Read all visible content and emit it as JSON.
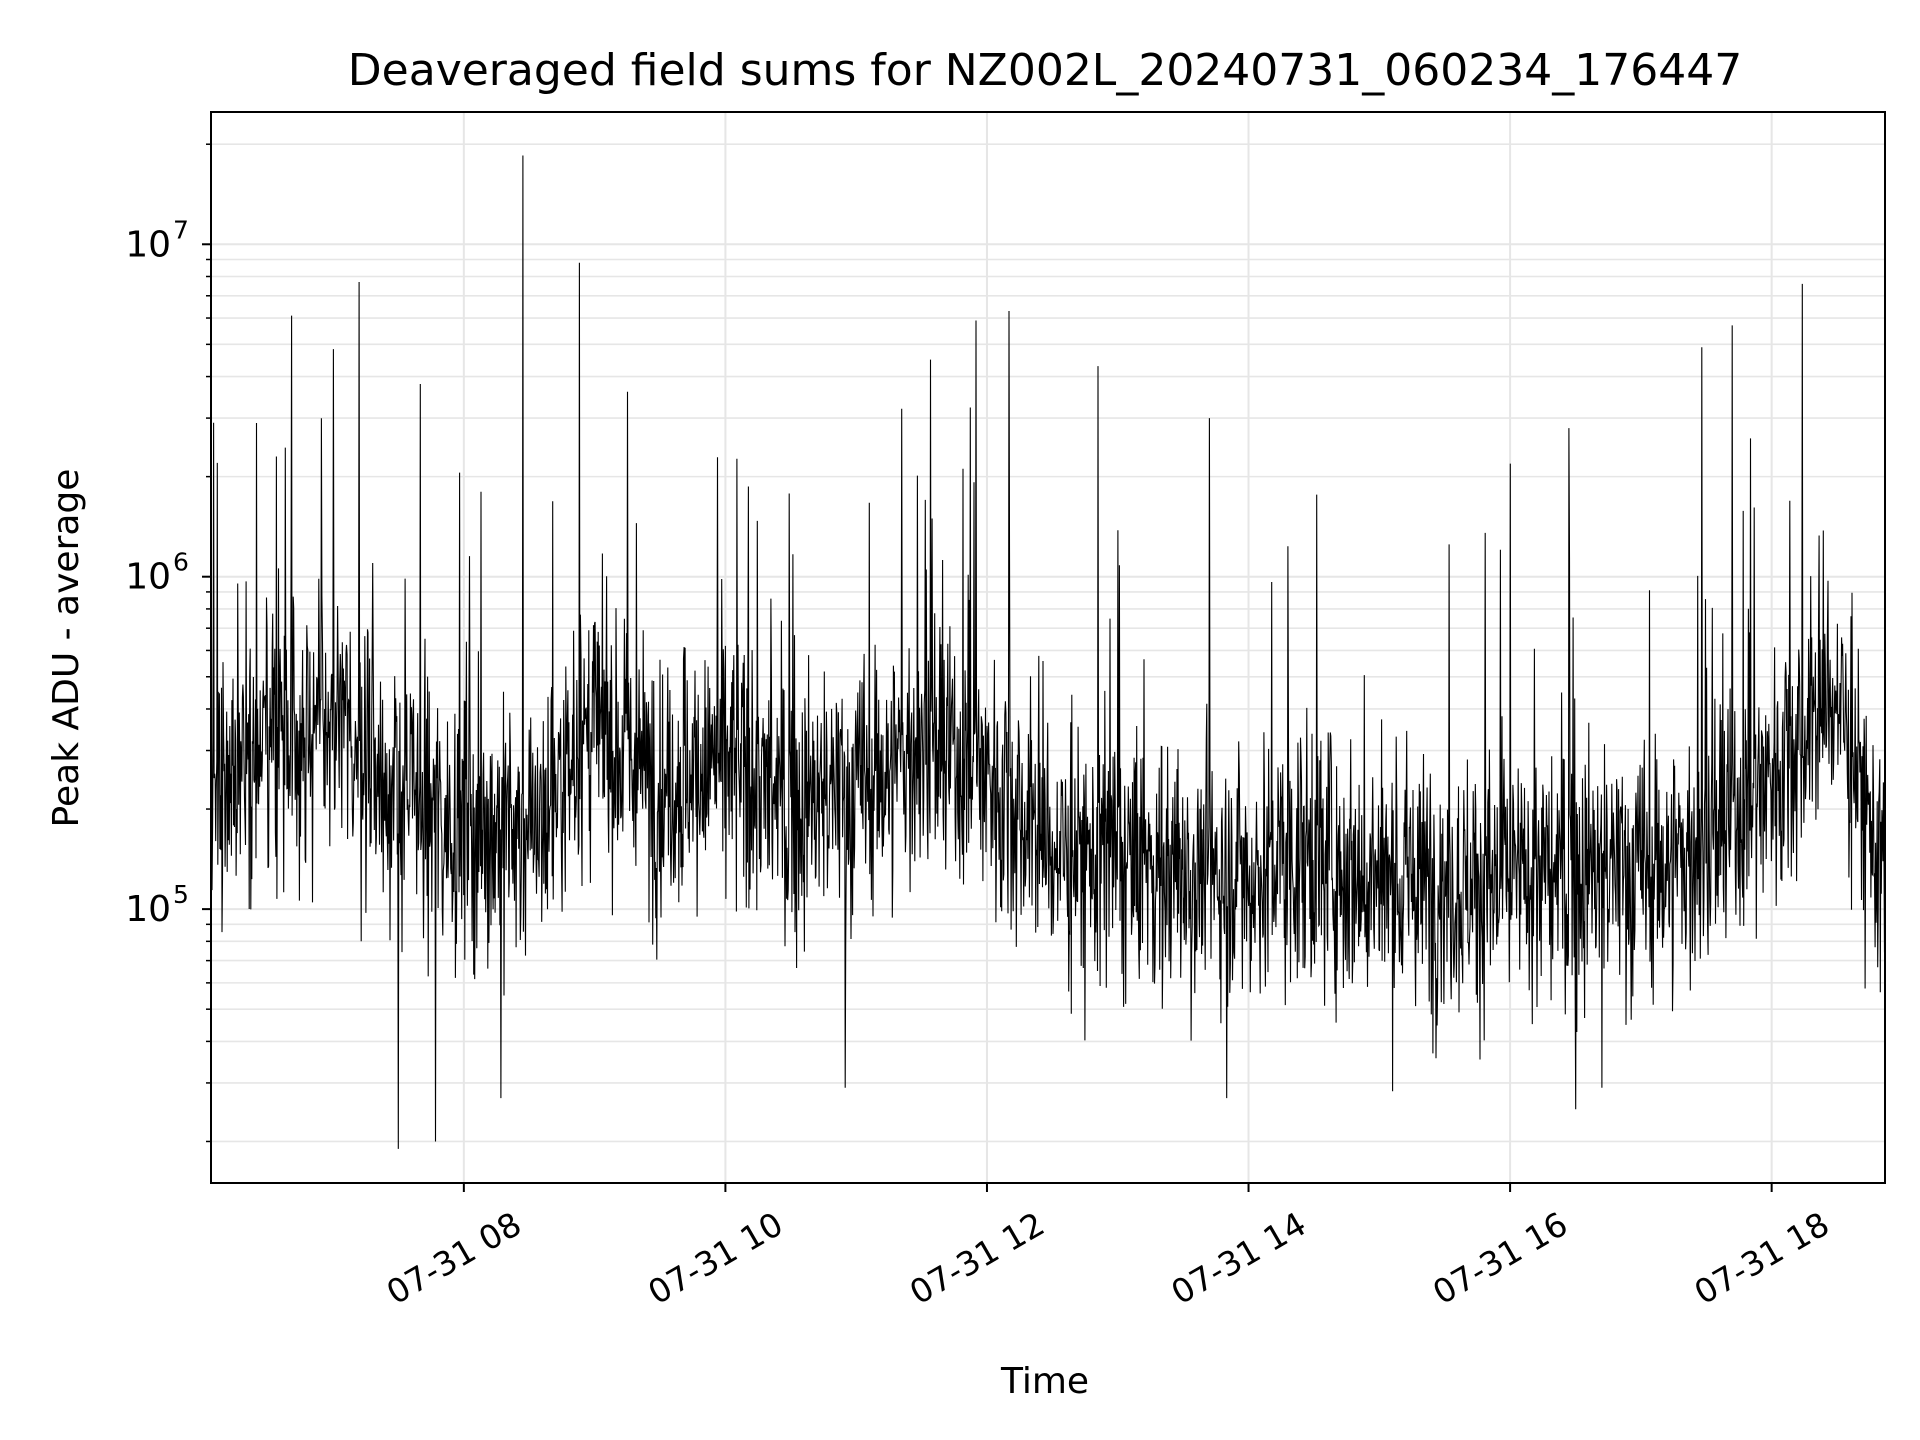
{
  "chart_data": {
    "type": "line",
    "title": "Deaveraged field sums for NZ002L_20240731_060234_176447",
    "xlabel": "Time",
    "ylabel": "Peak ADU - average",
    "yscale": "log",
    "ylim": [
      15000,
      25000000
    ],
    "xlim": [
      "2024-07-31 06:04",
      "2024-07-31 18:52"
    ],
    "grid": true,
    "line_color": "#000000",
    "grid_color": "#e6e6e6",
    "x_ticks": [
      {
        "value": "2024-07-31 08:00",
        "label": "07-31 08"
      },
      {
        "value": "2024-07-31 10:00",
        "label": "07-31 10"
      },
      {
        "value": "2024-07-31 12:00",
        "label": "07-31 12"
      },
      {
        "value": "2024-07-31 14:00",
        "label": "07-31 14"
      },
      {
        "value": "2024-07-31 16:00",
        "label": "07-31 16"
      },
      {
        "value": "2024-07-31 18:00",
        "label": "07-31 18"
      }
    ],
    "y_ticks": [
      {
        "value": 100000,
        "base": "10",
        "exp": "5"
      },
      {
        "value": 1000000,
        "base": "10",
        "exp": "6"
      },
      {
        "value": 10000000,
        "base": "10",
        "exp": "7"
      }
    ],
    "series": [
      {
        "values_envelope": {
          "x": [
            "2024-07-31 06:04",
            "2024-07-31 06:30",
            "2024-07-31 07:00",
            "2024-07-31 07:30",
            "2024-07-31 08:00",
            "2024-07-31 08:30",
            "2024-07-31 09:00",
            "2024-07-31 09:30",
            "2024-07-31 10:00",
            "2024-07-31 10:30",
            "2024-07-31 11:00",
            "2024-07-31 11:30",
            "2024-07-31 12:00",
            "2024-07-31 12:30",
            "2024-07-31 13:00",
            "2024-07-31 13:30",
            "2024-07-31 14:00",
            "2024-07-31 14:30",
            "2024-07-31 15:00",
            "2024-07-31 15:30",
            "2024-07-31 16:00",
            "2024-07-31 16:30",
            "2024-07-31 17:00",
            "2024-07-31 17:30",
            "2024-07-31 18:00",
            "2024-07-31 18:30",
            "2024-07-31 18:52"
          ],
          "typical": [
            230000,
            330000,
            360000,
            220000,
            180000,
            170000,
            350000,
            240000,
            280000,
            200000,
            230000,
            300000,
            260000,
            150000,
            140000,
            130000,
            130000,
            150000,
            120000,
            120000,
            120000,
            130000,
            130000,
            150000,
            260000,
            450000,
            120000
          ]
        },
        "spikes": [
          {
            "x": "2024-07-31 06:07",
            "y": 2200000
          },
          {
            "x": "2024-07-31 06:25",
            "y": 2900000
          },
          {
            "x": "2024-07-31 06:34",
            "y": 2300000
          },
          {
            "x": "2024-07-31 06:41",
            "y": 6100000
          },
          {
            "x": "2024-07-31 07:12",
            "y": 7700000
          },
          {
            "x": "2024-07-31 07:40",
            "y": 3800000
          },
          {
            "x": "2024-07-31 08:27",
            "y": 18500000
          },
          {
            "x": "2024-07-31 08:53",
            "y": 8800000
          },
          {
            "x": "2024-07-31 09:15",
            "y": 3600000
          },
          {
            "x": "2024-07-31 11:21",
            "y": 3200000
          },
          {
            "x": "2024-07-31 11:34",
            "y": 4500000
          },
          {
            "x": "2024-07-31 11:55",
            "y": 5900000
          },
          {
            "x": "2024-07-31 12:10",
            "y": 6300000
          },
          {
            "x": "2024-07-31 12:51",
            "y": 4300000
          },
          {
            "x": "2024-07-31 13:42",
            "y": 3000000
          },
          {
            "x": "2024-07-31 16:27",
            "y": 2800000
          },
          {
            "x": "2024-07-31 17:28",
            "y": 4900000
          },
          {
            "x": "2024-07-31 17:42",
            "y": 5700000
          },
          {
            "x": "2024-07-31 18:14",
            "y": 7600000
          }
        ],
        "dips": [
          {
            "x": "2024-07-31 07:30",
            "y": 19000
          },
          {
            "x": "2024-07-31 07:47",
            "y": 20000
          },
          {
            "x": "2024-07-31 08:17",
            "y": 27000
          },
          {
            "x": "2024-07-31 10:55",
            "y": 29000
          },
          {
            "x": "2024-07-31 13:50",
            "y": 27000
          },
          {
            "x": "2024-07-31 16:30",
            "y": 25000
          },
          {
            "x": "2024-07-31 16:42",
            "y": 29000
          }
        ]
      }
    ]
  }
}
